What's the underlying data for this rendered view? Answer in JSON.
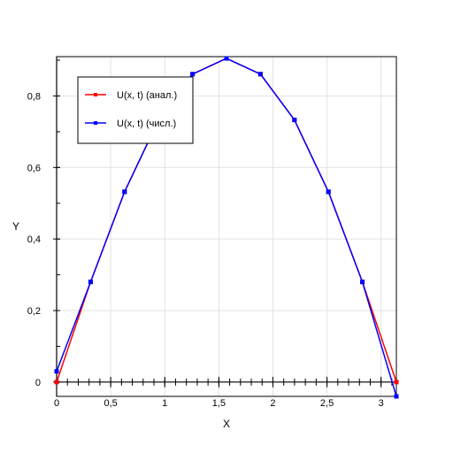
{
  "chart_data": {
    "type": "line",
    "xlabel": "X",
    "ylabel": "Y",
    "xlim": [
      0,
      3.1416
    ],
    "ylim": [
      -0.04,
      0.91
    ],
    "x_ticks": [
      0,
      0.5,
      1,
      1.5,
      2,
      2.5,
      3
    ],
    "x_tick_labels": [
      "0",
      "0,5",
      "1",
      "1,5",
      "2",
      "2,5",
      "3"
    ],
    "y_ticks": [
      0,
      0.2,
      0.4,
      0.6,
      0.8
    ],
    "y_tick_labels": [
      "0",
      "0,2",
      "0,4",
      "0,6",
      "0,8"
    ],
    "grid": true,
    "legend_position": "top-left",
    "series": [
      {
        "name": "U(x, t) (анал.)",
        "color": "#ff0000",
        "x": [
          0,
          0.3142,
          0.6283,
          0.9425,
          1.2566,
          1.5708,
          1.885,
          2.1991,
          2.5133,
          2.8274,
          3.1416
        ],
        "y": [
          0,
          0.28,
          0.532,
          0.733,
          0.861,
          0.905,
          0.861,
          0.733,
          0.532,
          0.28,
          0
        ]
      },
      {
        "name": "U(x, t) (числ.)",
        "color": "#0000ff",
        "x": [
          0,
          0.3142,
          0.6283,
          0.9425,
          1.2566,
          1.5708,
          1.885,
          2.1991,
          2.5133,
          2.8274,
          3.1416
        ],
        "y": [
          0.03,
          0.28,
          0.532,
          0.733,
          0.861,
          0.905,
          0.861,
          0.733,
          0.532,
          0.28,
          -0.04
        ]
      }
    ]
  }
}
